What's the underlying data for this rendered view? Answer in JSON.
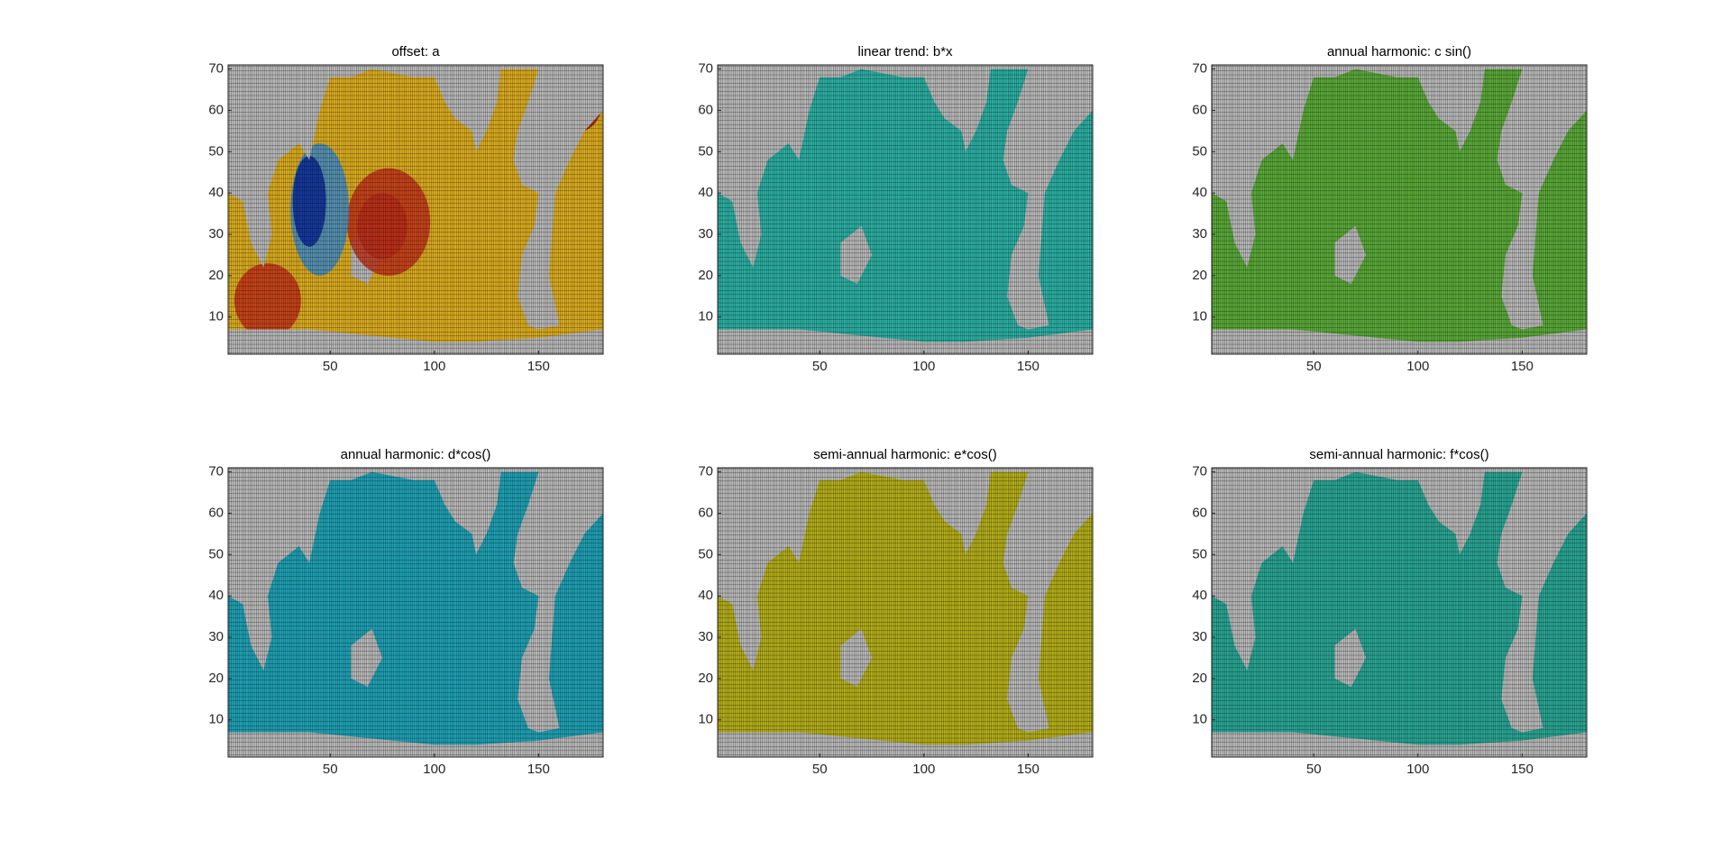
{
  "chart_data": [
    {
      "type": "heatmap",
      "title": "offset: a",
      "color": "#e0b020",
      "xlim": [
        1,
        181
      ],
      "ylim": [
        1,
        71
      ],
      "xticks": [
        50,
        100,
        150
      ],
      "yticks": [
        10,
        20,
        30,
        40,
        50,
        60,
        70
      ]
    },
    {
      "type": "heatmap",
      "title": "linear trend: b*x",
      "color": "#2db3a6",
      "xlim": [
        1,
        181
      ],
      "ylim": [
        1,
        71
      ],
      "xticks": [
        50,
        100,
        150
      ],
      "yticks": [
        10,
        20,
        30,
        40,
        50,
        60,
        70
      ]
    },
    {
      "type": "heatmap",
      "title": "annual harmonic: c sin()",
      "color": "#5cad3a",
      "xlim": [
        1,
        181
      ],
      "ylim": [
        1,
        71
      ],
      "xticks": [
        50,
        100,
        150
      ],
      "yticks": [
        10,
        20,
        30,
        40,
        50,
        60,
        70
      ]
    },
    {
      "type": "heatmap",
      "title": "annual harmonic: d*cos()",
      "color": "#20a4b8",
      "xlim": [
        1,
        181
      ],
      "ylim": [
        1,
        71
      ],
      "xticks": [
        50,
        100,
        150
      ],
      "yticks": [
        10,
        20,
        30,
        40,
        50,
        60,
        70
      ]
    },
    {
      "type": "heatmap",
      "title": "semi-annual harmonic: e*cos()",
      "color": "#b8b21a",
      "xlim": [
        1,
        181
      ],
      "ylim": [
        1,
        71
      ],
      "xticks": [
        50,
        100,
        150
      ],
      "yticks": [
        10,
        20,
        30,
        40,
        50,
        60,
        70
      ]
    },
    {
      "type": "heatmap",
      "title": "semi-annual harmonic: f*cos()",
      "color": "#2aa997",
      "xlim": [
        1,
        181
      ],
      "ylim": [
        1,
        71
      ],
      "xticks": [
        50,
        100,
        150
      ],
      "yticks": [
        10,
        20,
        30,
        40,
        50,
        60,
        70
      ]
    }
  ]
}
